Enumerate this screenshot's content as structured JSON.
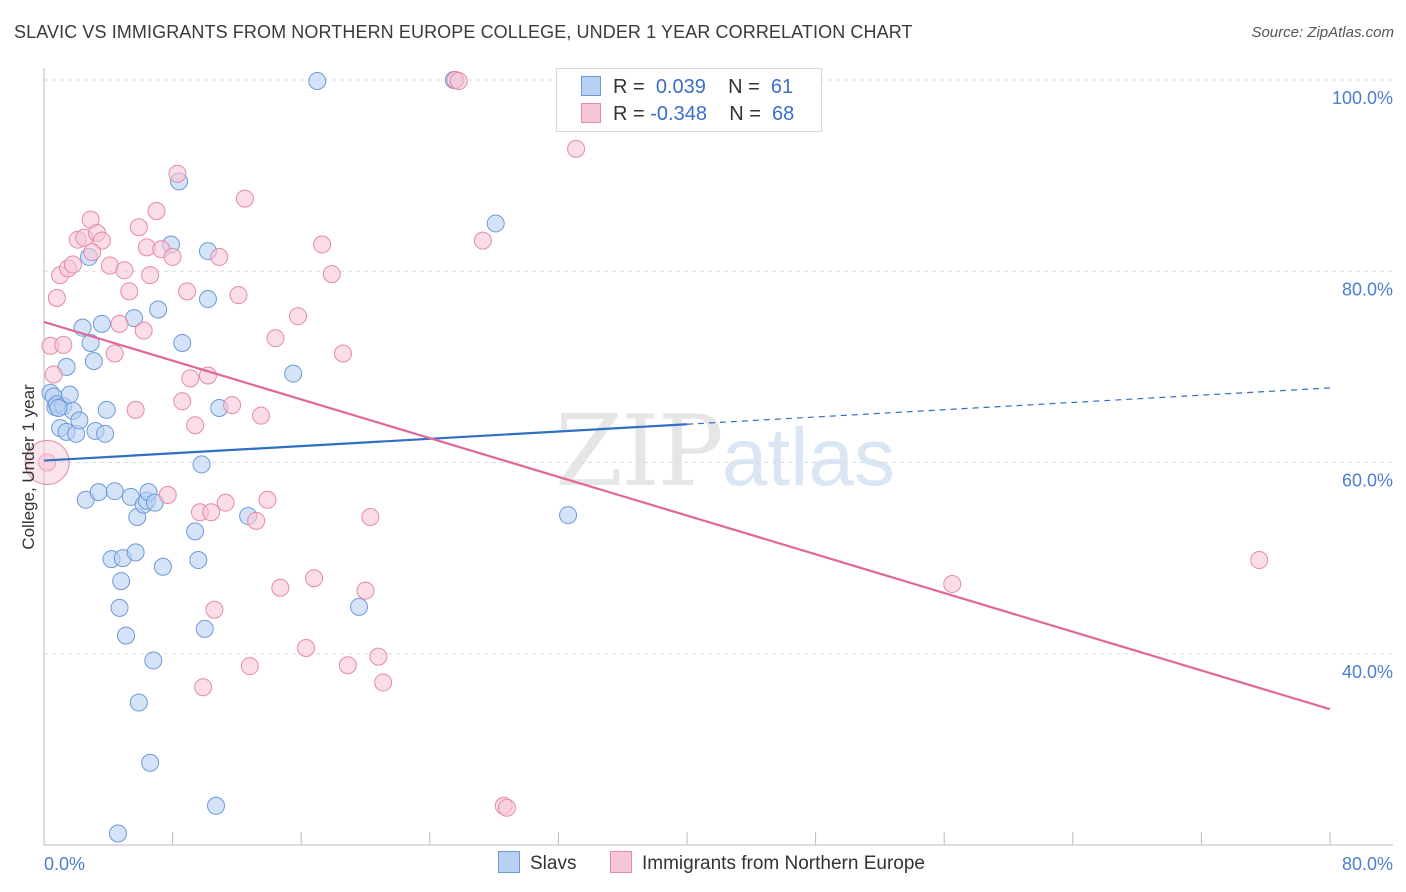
{
  "header": {
    "title": "SLAVIC VS IMMIGRANTS FROM NORTHERN EUROPE COLLEGE, UNDER 1 YEAR CORRELATION CHART",
    "source": "Source: ZipAtlas.com"
  },
  "legend": {
    "rows": [
      {
        "r_label": "R =",
        "r_value": "0.039",
        "n_label": "N =",
        "n_value": "61"
      },
      {
        "r_label": "R =",
        "r_value": "-0.348",
        "n_label": "N =",
        "n_value": "68"
      }
    ],
    "bottom": [
      "Slavs",
      "Immigrants from Northern Europe"
    ]
  },
  "watermark": {
    "zip": "ZIP",
    "atlas": "atlas"
  },
  "colors": {
    "slavs_fill": "#b8d1f2",
    "slavs_stroke": "#6d9ad8",
    "slavs_line": "#2f6fc4",
    "immig_fill": "#f7c6d6",
    "immig_stroke": "#e68aa8",
    "immig_line": "#e0679a",
    "tick": "#4a7fd0",
    "grid": "#dcdcdc"
  },
  "chart_data": {
    "type": "scatter",
    "xlabel": "",
    "ylabel": "College, Under 1 year",
    "xlim": [
      0,
      80
    ],
    "ylim": [
      20,
      100
    ],
    "x_ticks": [
      "0.0%",
      "80.0%"
    ],
    "y_ticks": [
      "100.0%",
      "80.0%",
      "60.0%",
      "40.0%"
    ],
    "y_tick_values": [
      100,
      80,
      60,
      40
    ],
    "grid": true,
    "legend_position": "top-center",
    "series": [
      {
        "name": "Slavs",
        "color": "#6d9ad8",
        "points": [
          [
            0.4,
            67.3
          ],
          [
            0.6,
            66.9
          ],
          [
            0.7,
            65.8
          ],
          [
            0.8,
            66.1
          ],
          [
            1.0,
            63.6
          ],
          [
            1.2,
            65.9
          ],
          [
            1.4,
            63.2
          ],
          [
            1.4,
            70.0
          ],
          [
            1.6,
            67.1
          ],
          [
            1.8,
            65.4
          ],
          [
            2.0,
            63.0
          ],
          [
            2.2,
            64.4
          ],
          [
            2.4,
            74.1
          ],
          [
            2.6,
            56.1
          ],
          [
            2.8,
            81.5
          ],
          [
            2.9,
            72.5
          ],
          [
            3.1,
            70.6
          ],
          [
            3.2,
            63.3
          ],
          [
            3.4,
            56.9
          ],
          [
            3.6,
            74.5
          ],
          [
            3.8,
            63.0
          ],
          [
            3.9,
            65.5
          ],
          [
            4.2,
            49.9
          ],
          [
            4.4,
            57.0
          ],
          [
            4.6,
            21.2
          ],
          [
            4.7,
            44.8
          ],
          [
            4.8,
            47.6
          ],
          [
            4.9,
            50.0
          ],
          [
            5.1,
            41.9
          ],
          [
            5.4,
            56.4
          ],
          [
            5.6,
            75.1
          ],
          [
            5.7,
            50.6
          ],
          [
            5.8,
            54.3
          ],
          [
            5.9,
            34.9
          ],
          [
            6.2,
            55.6
          ],
          [
            6.4,
            56.0
          ],
          [
            6.5,
            56.9
          ],
          [
            6.6,
            28.6
          ],
          [
            6.8,
            39.3
          ],
          [
            6.9,
            55.8
          ],
          [
            7.1,
            76.0
          ],
          [
            7.4,
            49.1
          ],
          [
            7.9,
            82.8
          ],
          [
            8.4,
            89.4
          ],
          [
            8.6,
            72.5
          ],
          [
            9.4,
            52.8
          ],
          [
            9.6,
            49.8
          ],
          [
            9.8,
            59.8
          ],
          [
            10.0,
            42.6
          ],
          [
            10.2,
            82.1
          ],
          [
            10.2,
            77.1
          ],
          [
            10.9,
            65.7
          ],
          [
            10.7,
            24.1
          ],
          [
            12.7,
            54.4
          ],
          [
            15.5,
            69.3
          ],
          [
            17.0,
            99.9
          ],
          [
            19.6,
            44.9
          ],
          [
            25.5,
            100.0
          ],
          [
            28.1,
            85.0
          ],
          [
            32.6,
            54.5
          ],
          [
            0.9,
            65.7
          ]
        ],
        "trend": {
          "x": [
            0,
            40
          ],
          "y": [
            60.2,
            64.0
          ]
        },
        "trend_extension": {
          "x": [
            40,
            80
          ],
          "y": [
            64.0,
            67.8
          ]
        }
      },
      {
        "name": "Immigrants from Northern Europe",
        "color": "#e68aa8",
        "points": [
          [
            0.2,
            60.0
          ],
          [
            0.4,
            72.2
          ],
          [
            0.6,
            69.2
          ],
          [
            0.8,
            77.2
          ],
          [
            1.0,
            79.6
          ],
          [
            1.5,
            80.3
          ],
          [
            1.8,
            80.7
          ],
          [
            2.1,
            83.3
          ],
          [
            2.5,
            83.5
          ],
          [
            2.9,
            85.4
          ],
          [
            3.3,
            84.0
          ],
          [
            3.6,
            83.2
          ],
          [
            4.1,
            80.6
          ],
          [
            4.4,
            71.4
          ],
          [
            4.7,
            74.5
          ],
          [
            5.0,
            80.1
          ],
          [
            5.3,
            77.9
          ],
          [
            5.7,
            65.5
          ],
          [
            5.9,
            84.6
          ],
          [
            6.2,
            73.8
          ],
          [
            6.4,
            82.5
          ],
          [
            6.6,
            79.6
          ],
          [
            7.0,
            86.3
          ],
          [
            7.3,
            82.3
          ],
          [
            7.7,
            56.6
          ],
          [
            8.0,
            81.5
          ],
          [
            8.3,
            90.2
          ],
          [
            8.6,
            66.4
          ],
          [
            8.9,
            77.9
          ],
          [
            9.1,
            68.8
          ],
          [
            9.4,
            63.9
          ],
          [
            9.7,
            54.8
          ],
          [
            9.9,
            36.5
          ],
          [
            10.2,
            69.1
          ],
          [
            10.4,
            54.8
          ],
          [
            10.6,
            44.6
          ],
          [
            10.9,
            81.5
          ],
          [
            11.3,
            55.8
          ],
          [
            11.7,
            66.0
          ],
          [
            12.1,
            77.5
          ],
          [
            12.5,
            87.6
          ],
          [
            12.8,
            38.7
          ],
          [
            13.2,
            53.9
          ],
          [
            13.5,
            64.9
          ],
          [
            13.9,
            56.1
          ],
          [
            14.4,
            73.0
          ],
          [
            14.7,
            46.9
          ],
          [
            15.8,
            75.3
          ],
          [
            16.3,
            40.6
          ],
          [
            16.8,
            47.9
          ],
          [
            17.3,
            82.8
          ],
          [
            17.9,
            79.7
          ],
          [
            18.6,
            71.4
          ],
          [
            18.9,
            38.8
          ],
          [
            20.0,
            46.6
          ],
          [
            20.3,
            54.3
          ],
          [
            20.8,
            39.7
          ],
          [
            21.1,
            37.0
          ],
          [
            25.6,
            100.0
          ],
          [
            25.8,
            99.9
          ],
          [
            27.3,
            83.2
          ],
          [
            28.6,
            24.1
          ],
          [
            28.8,
            23.9
          ],
          [
            33.1,
            92.8
          ],
          [
            56.5,
            47.3
          ],
          [
            75.6,
            49.8
          ],
          [
            1.2,
            72.3
          ],
          [
            3.0,
            82.0
          ]
        ],
        "trend": {
          "x": [
            0,
            80
          ],
          "y": [
            74.7,
            34.2
          ]
        }
      }
    ]
  }
}
